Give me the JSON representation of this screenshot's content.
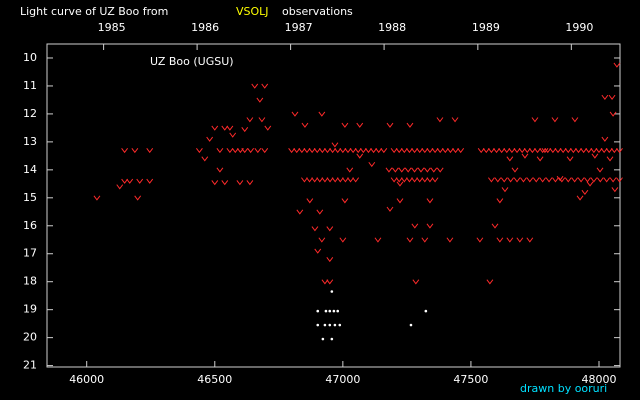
{
  "chart_data": {
    "type": "scatter",
    "title": "Light curve of UZ Boo from",
    "title_highlight": "VSOLJ",
    "title_end": "observations",
    "annotation": "UZ Boo (UGSU)",
    "credit": "drawn by ooruri",
    "xlim": [
      45845,
      48082
    ],
    "ylim": [
      21.05,
      9.5
    ],
    "xticks": [
      46000,
      46500,
      47000,
      47500,
      48000
    ],
    "yticks": [
      10,
      11,
      12,
      13,
      14,
      15,
      16,
      17,
      18,
      19,
      20,
      21
    ],
    "x2ticks": [
      {
        "value": 46066,
        "label": "1985"
      },
      {
        "value": 46431,
        "label": "1986"
      },
      {
        "value": 46796,
        "label": "1987"
      },
      {
        "value": 47161,
        "label": "1988"
      },
      {
        "value": 47527,
        "label": "1989"
      },
      {
        "value": 47892,
        "label": "1990"
      }
    ],
    "series": [
      {
        "color": "#ff2a2a",
        "marker": "v",
        "x": [
          46040,
          46129,
          46148,
          46148,
          46168,
          46188,
          46199,
          46207,
          46246,
          46246,
          46461,
          46480,
          46500,
          46500,
          46520,
          46520,
          46539,
          46539,
          46559,
          46559,
          46570,
          46598,
          46617,
          46617,
          46637,
          46637,
          46656,
          46668,
          46676,
          46684,
          46695,
          46695,
          46707,
          46440,
          46580,
          46600,
          46640,
          46832,
          46871,
          46910,
          46891,
          46918,
          46902,
          46949,
          47000,
          46949,
          46930,
          46949,
          47008,
          47027,
          47066,
          47066,
          46969,
          47008,
          46918,
          46813,
          46852,
          47113,
          47137,
          46800,
          46820,
          46840,
          46860,
          46880,
          46900,
          46920,
          46940,
          46960,
          46980,
          47000,
          47020,
          47040,
          47060,
          47080,
          47100,
          47120,
          47140,
          47160,
          46850,
          46870,
          46890,
          46910,
          46930,
          46950,
          46970,
          46990,
          47010,
          47030,
          47050,
          47184,
          47262,
          47223,
          47281,
          47262,
          47340,
          47320,
          47418,
          47379,
          47438,
          47285,
          47184,
          47223,
          47340,
          47200,
          47220,
          47240,
          47260,
          47280,
          47300,
          47320,
          47340,
          47360,
          47380,
          47400,
          47420,
          47440,
          47460,
          47180,
          47205,
          47230,
          47255,
          47280,
          47305,
          47330,
          47355,
          47380,
          47200,
          47220,
          47240,
          47260,
          47280,
          47300,
          47320,
          47340,
          47360,
          47535,
          47574,
          47594,
          47613,
          47652,
          47691,
          47730,
          47613,
          47633,
          47652,
          47672,
          47711,
          47770,
          47789,
          47750,
          47828,
          47906,
          47926,
          47945,
          48004,
          48023,
          48051,
          48070,
          48055,
          48023,
          47984,
          47887,
          47848,
          48043,
          48062,
          47965,
          47540,
          47560,
          47580,
          47600,
          47620,
          47640,
          47660,
          47680,
          47700,
          47720,
          47740,
          47760,
          47780,
          47800,
          47820,
          47840,
          47860,
          47880,
          47900,
          47920,
          47940,
          47960,
          47980,
          48000,
          48020,
          48040,
          48060,
          48080,
          47580,
          47605,
          47630,
          47655,
          47680,
          47705,
          47730,
          47755,
          47780,
          47805,
          47830,
          47855,
          47880,
          47905,
          47930,
          47955,
          47980,
          48005,
          48030,
          48055,
          48080
        ],
        "values": [
          15.0,
          14.6,
          13.3,
          14.4,
          14.4,
          13.3,
          15.0,
          14.4,
          14.4,
          13.3,
          13.6,
          12.9,
          12.5,
          14.45,
          13.3,
          14.0,
          12.5,
          14.45,
          12.5,
          13.3,
          12.75,
          14.45,
          13.3,
          12.55,
          14.45,
          12.2,
          11.0,
          13.3,
          11.5,
          12.2,
          11.0,
          13.3,
          12.5,
          13.3,
          13.3,
          13.3,
          13.3,
          15.5,
          15.1,
          15.5,
          16.1,
          16.5,
          16.9,
          16.1,
          16.5,
          17.2,
          18.0,
          18.0,
          15.1,
          14.0,
          13.5,
          12.4,
          13.1,
          12.4,
          12.0,
          12.0,
          12.4,
          13.8,
          16.5,
          13.3,
          13.3,
          13.3,
          13.3,
          13.3,
          13.3,
          13.3,
          13.3,
          13.3,
          13.3,
          13.3,
          13.3,
          13.3,
          13.3,
          13.3,
          13.3,
          13.3,
          13.3,
          13.3,
          14.35,
          14.35,
          14.35,
          14.35,
          14.35,
          14.35,
          14.35,
          14.35,
          14.35,
          14.35,
          14.35,
          12.4,
          12.4,
          15.1,
          16.0,
          16.5,
          16.0,
          16.5,
          16.5,
          12.2,
          12.2,
          18.0,
          15.4,
          14.5,
          15.1,
          13.3,
          13.3,
          13.3,
          13.3,
          13.3,
          13.3,
          13.3,
          13.3,
          13.3,
          13.3,
          13.3,
          13.3,
          13.3,
          13.3,
          14.0,
          14.0,
          14.0,
          14.0,
          14.0,
          14.0,
          14.0,
          14.0,
          14.0,
          14.35,
          14.35,
          14.35,
          14.35,
          14.35,
          14.35,
          14.35,
          14.35,
          14.35,
          16.5,
          18.0,
          16.0,
          16.5,
          16.5,
          16.5,
          16.5,
          15.1,
          14.7,
          13.6,
          14.0,
          13.5,
          13.6,
          13.3,
          12.2,
          12.2,
          12.2,
          15.0,
          14.8,
          14.0,
          11.4,
          11.4,
          10.25,
          12.0,
          12.9,
          13.5,
          13.6,
          14.3,
          13.6,
          14.7,
          14.5,
          13.3,
          13.3,
          13.3,
          13.3,
          13.3,
          13.3,
          13.3,
          13.3,
          13.3,
          13.3,
          13.3,
          13.3,
          13.3,
          13.3,
          13.3,
          13.3,
          13.3,
          13.3,
          13.3,
          13.3,
          13.3,
          13.3,
          13.3,
          13.3,
          13.3,
          13.3,
          13.3,
          13.3,
          14.35,
          14.35,
          14.35,
          14.35,
          14.35,
          14.35,
          14.35,
          14.35,
          14.35,
          14.35,
          14.35,
          14.35,
          14.35,
          14.35,
          14.35,
          14.35,
          14.35,
          14.35,
          14.35,
          14.35,
          14.35
        ]
      },
      {
        "color": "#ffffff",
        "marker": "dot",
        "x": [
          46957,
          46902,
          46934,
          46949,
          46965,
          46980,
          46902,
          46930,
          46949,
          46969,
          46988,
          46922,
          46957,
          47324,
          47266
        ],
        "values": [
          18.35,
          19.05,
          19.05,
          19.05,
          19.05,
          19.05,
          19.55,
          19.55,
          19.55,
          19.55,
          19.55,
          20.05,
          20.05,
          19.05,
          19.55
        ]
      }
    ]
  }
}
